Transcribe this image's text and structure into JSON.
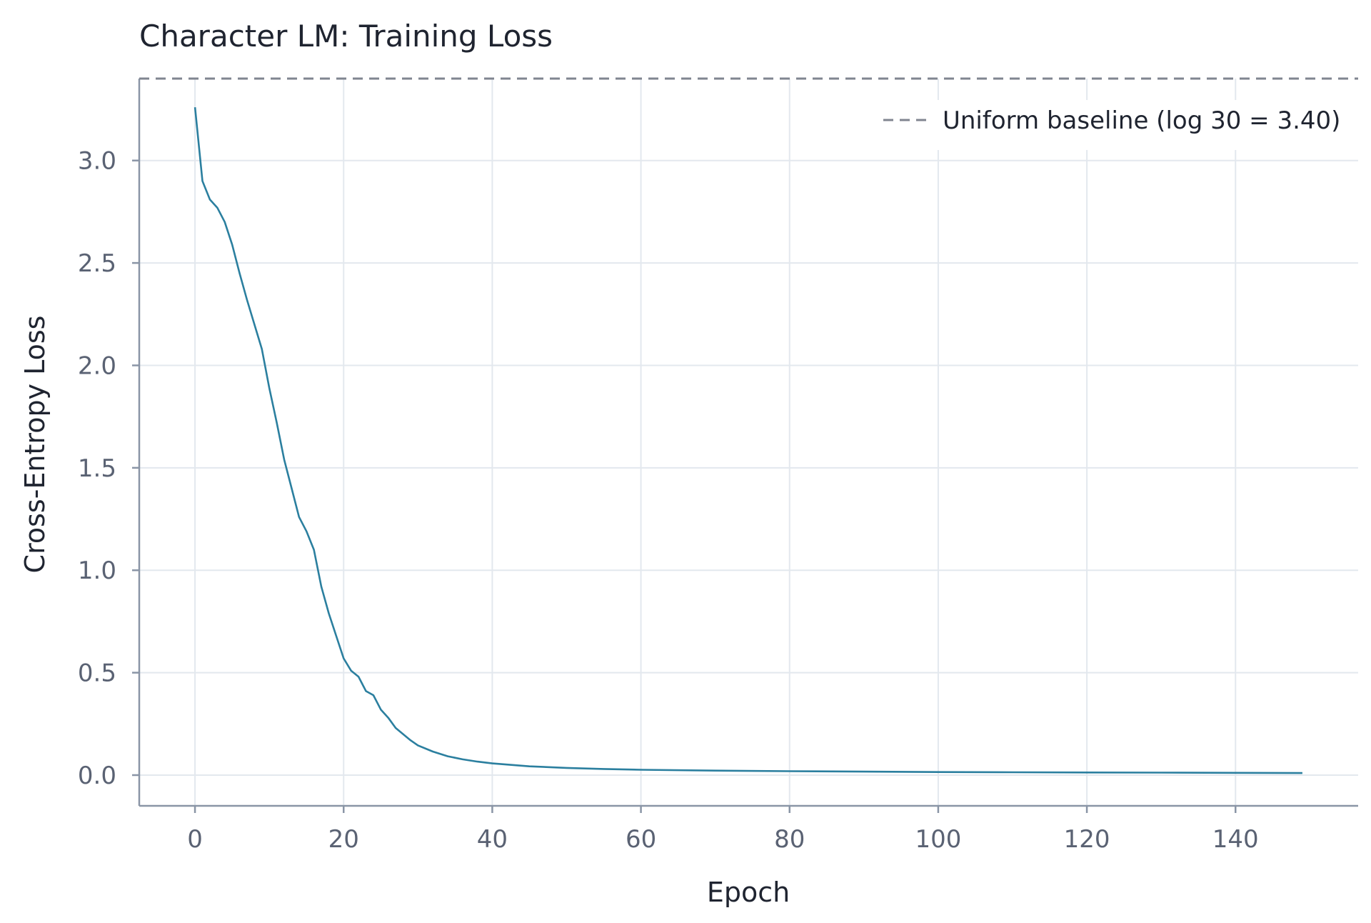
{
  "chart_data": {
    "type": "line",
    "title": "Character LM: Training Loss",
    "xlabel": "Epoch",
    "ylabel": "Cross-Entropy Loss",
    "xlim": [
      -7.5,
      156.5
    ],
    "ylim": [
      -0.15,
      3.4
    ],
    "x_ticks": [
      0,
      20,
      40,
      60,
      80,
      100,
      120,
      140
    ],
    "x_tick_labels": [
      "0",
      "20",
      "40",
      "60",
      "80",
      "100",
      "120",
      "140"
    ],
    "y_ticks": [
      0.0,
      0.5,
      1.0,
      1.5,
      2.0,
      2.5,
      3.0
    ],
    "y_tick_labels": [
      "0.0",
      "0.5",
      "1.0",
      "1.5",
      "2.0",
      "2.5",
      "3.0"
    ],
    "grid": true,
    "legend_position": "top-right",
    "colors": {
      "series": "#2b7f9f",
      "baseline": "#808590"
    },
    "baseline": {
      "name": "Uniform baseline (log 30 = 3.40)",
      "value": 3.4,
      "style": "dashed"
    },
    "series": [
      {
        "x": [
          0,
          1,
          2,
          3,
          4,
          5,
          6,
          7,
          8,
          9,
          10,
          11,
          12,
          13,
          14,
          15,
          16,
          17,
          18,
          19,
          20,
          21,
          22,
          23,
          24,
          25,
          26,
          27,
          28,
          29,
          30,
          32,
          34,
          36,
          38,
          40,
          45,
          50,
          55,
          60,
          70,
          80,
          90,
          100,
          110,
          120,
          130,
          140,
          149
        ],
        "y": [
          3.26,
          2.9,
          2.81,
          2.77,
          2.7,
          2.59,
          2.45,
          2.32,
          2.2,
          2.08,
          1.89,
          1.72,
          1.54,
          1.4,
          1.26,
          1.19,
          1.1,
          0.92,
          0.79,
          0.68,
          0.57,
          0.51,
          0.48,
          0.41,
          0.39,
          0.32,
          0.28,
          0.23,
          0.2,
          0.17,
          0.145,
          0.115,
          0.092,
          0.077,
          0.066,
          0.057,
          0.043,
          0.035,
          0.03,
          0.026,
          0.022,
          0.019,
          0.017,
          0.015,
          0.014,
          0.013,
          0.012,
          0.011,
          0.01
        ]
      }
    ]
  }
}
